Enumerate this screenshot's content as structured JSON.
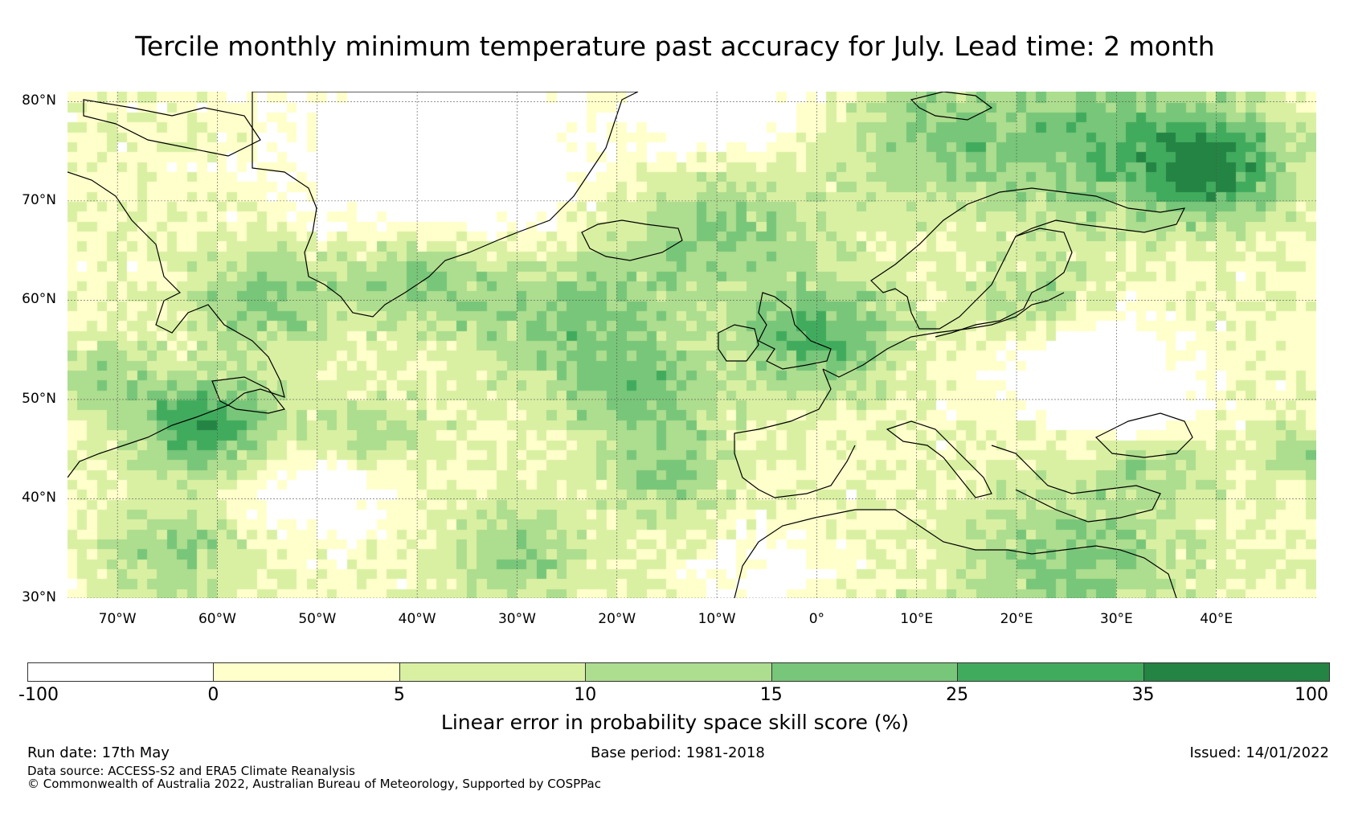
{
  "title": "Tercile monthly minimum temperature past accuracy for July. Lead time: 2 month",
  "map": {
    "lat_range": [
      30,
      81
    ],
    "lon_range": [
      -75,
      50
    ],
    "lat_ticks": [
      "80°N",
      "70°N",
      "60°N",
      "50°N",
      "40°N",
      "30°N"
    ],
    "lat_values": [
      80,
      70,
      60,
      50,
      40,
      30
    ],
    "lon_ticks": [
      "70°W",
      "60°W",
      "50°W",
      "40°W",
      "30°W",
      "20°W",
      "10°W",
      "0°",
      "10°E",
      "20°E",
      "30°E",
      "40°E"
    ],
    "lon_values": [
      -70,
      -60,
      -50,
      -40,
      -30,
      -20,
      -10,
      0,
      10,
      20,
      30,
      40
    ],
    "grid": "on"
  },
  "colorbar": {
    "label": "Linear error in probability space skill score (%)",
    "ticks": [
      "-100",
      "0",
      "5",
      "10",
      "15",
      "25",
      "35",
      "100"
    ],
    "colors": [
      "#ffffff",
      "#ffffcc",
      "#d9f0a3",
      "#addd8e",
      "#78c679",
      "#41ab5d",
      "#238443"
    ]
  },
  "footer": {
    "run_date": "Run date: 17th May",
    "base_period": "Base period: 1981-2018",
    "issued": "Issued: 14/01/2022",
    "data_source": "Data source: ACCESS-S2 and ERA5 Climate Reanalysis",
    "copyright": "© Commonwealth of Australia 2022, Australian Bureau of Meteorology, Supported by COSPPac"
  }
}
